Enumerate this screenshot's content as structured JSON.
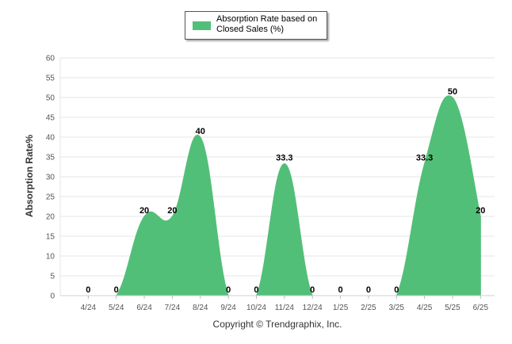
{
  "chart_data": {
    "type": "area",
    "categories": [
      "4/24",
      "5/24",
      "6/24",
      "7/24",
      "8/24",
      "9/24",
      "10/24",
      "11/24",
      "12/24",
      "1/25",
      "2/25",
      "3/25",
      "4/25",
      "5/25",
      "6/25"
    ],
    "series": [
      {
        "name": "Absorption Rate based on Closed Sales (%)",
        "values": [
          0,
          0,
          20,
          20,
          40,
          0,
          0,
          33.3,
          0,
          0,
          0,
          0,
          33.3,
          50,
          20
        ],
        "labels": [
          "0",
          "0",
          "20",
          "20",
          "40",
          "0",
          "0",
          "33.3",
          "0",
          "0",
          "0",
          "0",
          "33.3",
          "50",
          "20"
        ],
        "color": "#52bf78"
      }
    ],
    "ylabel": "Absorption Rate%",
    "xlabel": "",
    "ylim": [
      0,
      60
    ],
    "yticks": [
      0,
      5,
      10,
      15,
      20,
      25,
      30,
      35,
      40,
      45,
      50,
      55,
      60
    ],
    "grid": true,
    "legend_position": "top-center"
  },
  "legend": {
    "label_line1": "Absorption Rate based on",
    "label_line2": "Closed Sales (%)"
  },
  "footer": {
    "copyright": "Copyright © Trendgraphix, Inc."
  },
  "colors": {
    "series": "#52bf78",
    "grid": "#e6e6e6"
  }
}
